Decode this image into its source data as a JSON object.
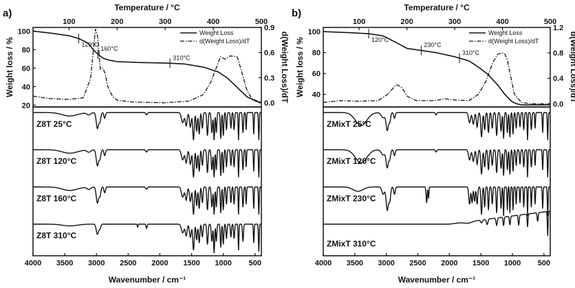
{
  "figure": {
    "panels": [
      {
        "label": "a)",
        "temp_axis_title": "Temperature / °C",
        "temp_ticks": [
          "100",
          "200",
          "300",
          "400",
          "500"
        ],
        "wl_axis_title": "Weight loss / %",
        "wl_ticks": [
          "20",
          "40",
          "60",
          "80",
          "100"
        ],
        "deriv_axis_title": "d(Weight Loss)/dT",
        "deriv_ticks": [
          "0.0",
          "0.3",
          "0.6",
          "0.9"
        ],
        "wn_axis_title": "Wavenumber / cm⁻¹",
        "wn_ticks": [
          "4000",
          "3500",
          "3000",
          "2500",
          "2000",
          "1500",
          "1000",
          "500"
        ],
        "legend": [
          "Weight Loss",
          "d(Weight Loss)/dT"
        ],
        "tga_annotations": [
          {
            "text": "120°C",
            "T": 120,
            "wl": 91
          },
          {
            "text": "160°C",
            "T": 160,
            "wl": 83
          },
          {
            "text": "310°C",
            "T": 310,
            "wl": 66
          }
        ],
        "ir_labels": [
          "Z8T 25°C",
          "Z8T 120°C",
          "Z8T 160°C",
          "Z8T 310°C"
        ]
      },
      {
        "label": "b)",
        "temp_axis_title": "Temperature / °C",
        "temp_ticks": [
          "100",
          "200",
          "300",
          "400",
          "500"
        ],
        "wl_axis_title": "Weight loss / %",
        "wl_ticks": [
          "40",
          "60",
          "80",
          "100"
        ],
        "deriv_axis_title": "d(Weight Loss)/dT",
        "deriv_ticks": [
          "0.0",
          "0.4",
          "0.8",
          "1.2"
        ],
        "wn_axis_title": "Wavenumber / cm⁻¹",
        "wn_ticks": [
          "4000",
          "3500",
          "3000",
          "2500",
          "2000",
          "1500",
          "1000",
          "500"
        ],
        "legend": [
          "Weight Loss",
          "d(Weight Loss)/dT"
        ],
        "tga_annotations": [
          {
            "text": "120°C",
            "T": 120,
            "wl": 99
          },
          {
            "text": "230°C",
            "T": 230,
            "wl": 81
          },
          {
            "text": "310°C",
            "T": 310,
            "wl": 76
          }
        ],
        "ir_labels": [
          "ZMixT 25°C",
          "ZMixT 120°C",
          "ZMixT 230°C",
          "ZMixT 310°C"
        ]
      }
    ]
  },
  "chart_data": [
    {
      "type": "line",
      "panel": "a)",
      "title": "",
      "xlabel": "Temperature / °C",
      "ylabel": "Weight loss / %",
      "y2label": "d(Weight Loss)/dT",
      "xlim": [
        25,
        500
      ],
      "ylim": [
        18,
        104
      ],
      "y2lim": [
        -0.05,
        0.9
      ],
      "series": [
        {
          "name": "Weight Loss",
          "x": [
            25,
            60,
            100,
            120,
            140,
            150,
            160,
            170,
            180,
            200,
            250,
            300,
            340,
            380,
            410,
            430,
            450,
            470,
            490,
            500
          ],
          "values": [
            100,
            98,
            95,
            92,
            87,
            80,
            75,
            71,
            69,
            67,
            66,
            65.5,
            64.5,
            61,
            56,
            49,
            39,
            29,
            24,
            23
          ]
        },
        {
          "name": "d(Weight Loss)/dT",
          "x": [
            25,
            60,
            100,
            130,
            145,
            150,
            155,
            160,
            165,
            170,
            175,
            180,
            190,
            200,
            230,
            300,
            350,
            380,
            395,
            405,
            415,
            425,
            435,
            450,
            460,
            470,
            480,
            500
          ],
          "values": [
            0.08,
            0.05,
            0.04,
            0.06,
            0.3,
            0.6,
            0.88,
            0.78,
            0.4,
            0.42,
            0.35,
            0.2,
            0.08,
            0.03,
            0.01,
            0.0,
            0.02,
            0.1,
            0.25,
            0.4,
            0.55,
            0.52,
            0.56,
            0.55,
            0.35,
            0.15,
            0.05,
            0.0
          ]
        }
      ]
    },
    {
      "type": "line",
      "panel": "b)",
      "title": "",
      "xlabel": "Temperature / °C",
      "ylabel": "Weight loss / %",
      "y2label": "d(Weight Loss)/dT",
      "xlim": [
        25,
        500
      ],
      "ylim": [
        28,
        104
      ],
      "y2lim": [
        -0.05,
        1.2
      ],
      "series": [
        {
          "name": "Weight Loss",
          "x": [
            25,
            80,
            120,
            150,
            180,
            200,
            230,
            260,
            300,
            330,
            350,
            370,
            390,
            405,
            420,
            430,
            440,
            460,
            500
          ],
          "values": [
            100,
            99,
            98,
            96,
            89,
            84,
            82,
            80,
            76,
            72,
            66,
            59,
            49,
            40,
            33,
            31,
            30,
            30,
            30
          ]
        },
        {
          "name": "d(Weight Loss)/dT",
          "x": [
            25,
            60,
            100,
            140,
            160,
            175,
            180,
            190,
            200,
            220,
            260,
            280,
            300,
            330,
            350,
            365,
            380,
            390,
            400,
            405,
            410,
            418,
            425,
            440,
            460,
            500
          ],
          "values": [
            0.02,
            0.05,
            0.04,
            0.05,
            0.15,
            0.28,
            0.3,
            0.25,
            0.12,
            0.05,
            0.05,
            0.08,
            0.06,
            0.05,
            0.15,
            0.35,
            0.65,
            0.78,
            0.8,
            0.78,
            0.7,
            0.4,
            0.15,
            0.02,
            0.0,
            0.0
          ]
        }
      ]
    },
    {
      "type": "line",
      "panel": "a)",
      "title": "",
      "xlabel": "Wavenumber / cm⁻¹",
      "ylabel": "",
      "xlim": [
        4000,
        400
      ],
      "series": [
        {
          "name": "Z8T 25°C",
          "profile": "z8t"
        },
        {
          "name": "Z8T 120°C",
          "profile": "z8t"
        },
        {
          "name": "Z8T 160°C",
          "profile": "z8t"
        },
        {
          "name": "Z8T 310°C",
          "profile": "z8t-weak"
        }
      ]
    },
    {
      "type": "line",
      "panel": "b)",
      "title": "",
      "xlabel": "Wavenumber / cm⁻¹",
      "ylabel": "",
      "xlim": [
        4000,
        400
      ],
      "series": [
        {
          "name": "ZMixT 25°C",
          "profile": "zmix"
        },
        {
          "name": "ZMixT 120°C",
          "profile": "zmix"
        },
        {
          "name": "ZMixT 230°C",
          "profile": "zmix-strong"
        },
        {
          "name": "ZMixT 310°C",
          "profile": "zmix-flat"
        }
      ]
    }
  ]
}
